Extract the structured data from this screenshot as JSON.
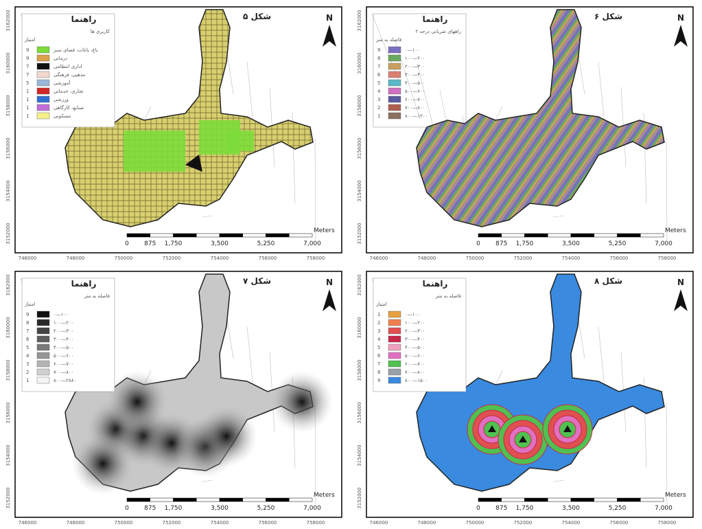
{
  "axes": {
    "x_labels": [
      "746000",
      "748000",
      "750000",
      "752000",
      "754000",
      "756000",
      "758000"
    ],
    "y_labels": [
      "3162000",
      "3160000",
      "3158000",
      "3156000",
      "3154000",
      "3152000"
    ]
  },
  "scale": {
    "labels": [
      "0",
      "875",
      "1,750",
      "3,500",
      "5,250",
      "7,000"
    ],
    "unit": "Meters"
  },
  "north": "N",
  "panels": [
    {
      "title": "شکل ۵",
      "legend_title": "راهنما",
      "legend_subtitle": "کاربری ها",
      "score_header": "امتیاز",
      "items": [
        {
          "label": "باغ، باغات، فضای سبز",
          "score": "9",
          "color": "#7ddc3a"
        },
        {
          "label": "درمانی",
          "score": "9",
          "color": "#d9a24a"
        },
        {
          "label": "اداری انتظامی",
          "score": "7",
          "color": "#111111"
        },
        {
          "label": "مذهبی، فرهنگی",
          "score": "7",
          "color": "#f2d8cf"
        },
        {
          "label": "آموزشی",
          "score": "5",
          "color": "#9cb8d8"
        },
        {
          "label": "تجاری، خدماتی",
          "score": "1",
          "color": "#d02828"
        },
        {
          "label": "ورزشی",
          "score": "1",
          "color": "#2f6fd0"
        },
        {
          "label": "صنایع، کارگاهی",
          "score": "1",
          "color": "#c070d8"
        },
        {
          "label": "مسکونی",
          "score": "1",
          "color": "#f4f08a"
        }
      ]
    },
    {
      "title": "شکل ۶",
      "legend_title": "راهنما",
      "legend_subtitle": "راههای شریانی درجه ۲",
      "score_header": "فاصله به متر",
      "items": [
        {
          "label": "۰—۱۰۰",
          "score": "9",
          "color": "#7a6fc0"
        },
        {
          "label": "۱۰۰—۲۰۰",
          "score": "8",
          "color": "#6aa860"
        },
        {
          "label": "۲۰۰—۳۰۰",
          "score": "7",
          "color": "#c8a060"
        },
        {
          "label": "۳۰۰—۴۰۰",
          "score": "6",
          "color": "#d88070"
        },
        {
          "label": "۴۰۰—۵۰۰",
          "score": "5",
          "color": "#5ab8c8"
        },
        {
          "label": "۵۰۰—۶۰۰",
          "score": "4",
          "color": "#d070c0"
        },
        {
          "label": "۶۰۰—۷۰۰",
          "score": "3",
          "color": "#5a5aa0"
        },
        {
          "label": "۷۰۰—۸۰۰",
          "score": "2",
          "color": "#b06050"
        },
        {
          "label": "۸۰۰—۱۲۰۰",
          "score": "1",
          "color": "#8a7060"
        }
      ]
    },
    {
      "title": "شکل ۷",
      "legend_title": "راهنما",
      "legend_subtitle": "فاصله به متر",
      "score_header": "امتیاز",
      "items": [
        {
          "label": "۰—۱۰۰",
          "score": "9",
          "color": "#111111"
        },
        {
          "label": "۱۰۰—۲۰۰",
          "score": "8",
          "color": "#2a2a2a"
        },
        {
          "label": "۲۰۰—۳۰۰",
          "score": "7",
          "color": "#444444"
        },
        {
          "label": "۳۰۰—۴۰۰",
          "score": "6",
          "color": "#5e5e5e"
        },
        {
          "label": "۴۰۰—۵۰۰",
          "score": "5",
          "color": "#7a7a7a"
        },
        {
          "label": "۵۰۰—۶۰۰",
          "score": "4",
          "color": "#969696"
        },
        {
          "label": "۶۰۰—۷۰۰",
          "score": "3",
          "color": "#b4b4b4"
        },
        {
          "label": "۷۰۰—۸۰۰",
          "score": "2",
          "color": "#d0d0d0"
        },
        {
          "label": "۸۰۰—۲۸۸۰",
          "score": "1",
          "color": "#f4f4f4"
        }
      ]
    },
    {
      "title": "شکل ۸",
      "legend_title": "راهنما",
      "legend_subtitle": "فاصله به متر",
      "score_header": "امتیاز",
      "items": [
        {
          "label": "۰—۱۰۰",
          "score": "1",
          "color": "#e8a040"
        },
        {
          "label": "۱۰۰—۲۰۰",
          "score": "2",
          "color": "#f08050"
        },
        {
          "label": "۲۰۰—۳۰۰",
          "score": "3",
          "color": "#e05050"
        },
        {
          "label": "۳۰۰—۴۰۰",
          "score": "4",
          "color": "#c82848"
        },
        {
          "label": "۴۰۰—۵۰۰",
          "score": "5",
          "color": "#f0a0c0"
        },
        {
          "label": "۵۰۰—۶۰۰",
          "score": "6",
          "color": "#e070c0"
        },
        {
          "label": "۶۰۰—۷۰۰",
          "score": "7",
          "color": "#50c050"
        },
        {
          "label": "۷۰۰—۸۰۰",
          "score": "8",
          "color": "#9aa0a8"
        },
        {
          "label": "۸۰۰—۱۵۰۰",
          "score": "9",
          "color": "#3a8ae0"
        }
      ]
    }
  ]
}
